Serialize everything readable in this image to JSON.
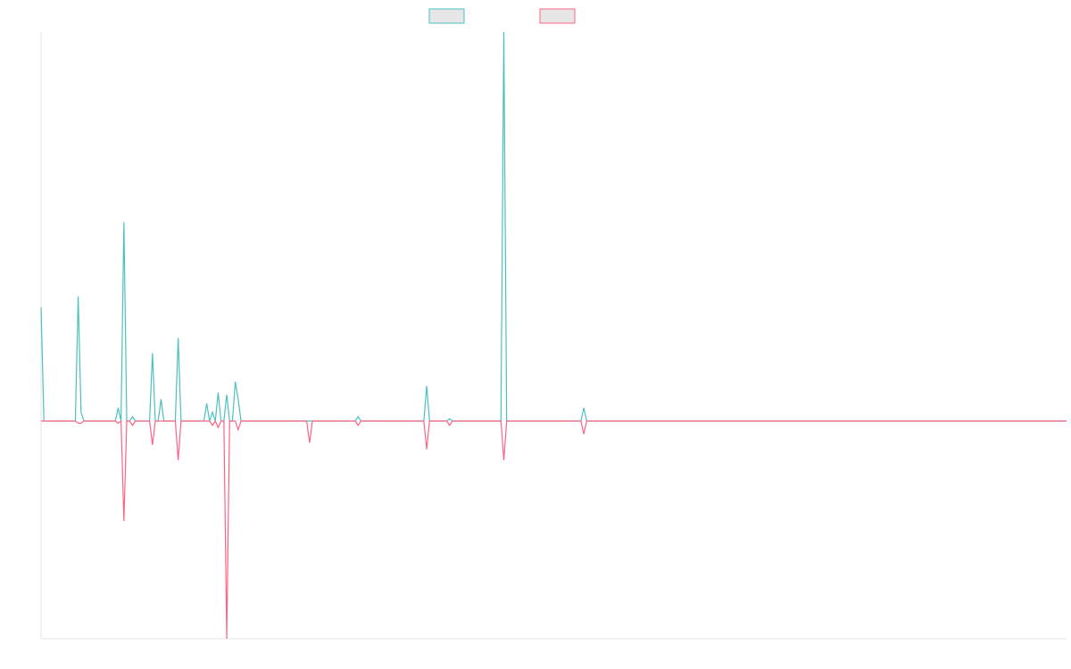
{
  "chart_data": {
    "type": "line",
    "title": "",
    "xlabel": "",
    "ylabel": "",
    "grid": false,
    "legend": {
      "placement": "top-center"
    },
    "x": [
      0,
      1,
      2,
      3,
      4,
      5,
      6,
      7,
      8,
      9,
      10,
      11,
      12,
      13,
      14,
      15,
      16,
      17,
      18,
      19,
      20,
      21,
      22,
      23,
      24,
      25,
      26,
      27,
      28,
      29,
      30,
      31,
      32,
      33,
      34,
      35,
      36,
      37,
      38,
      39,
      40,
      41,
      42,
      43,
      44,
      45,
      46,
      47,
      48,
      49,
      50,
      51,
      52,
      53,
      54,
      55,
      56,
      57,
      58,
      59,
      60,
      61,
      62,
      63,
      64,
      65,
      66,
      67,
      68,
      69,
      70,
      71,
      72,
      73,
      74,
      75,
      76,
      77,
      78,
      79,
      80,
      81,
      82,
      83,
      84,
      85,
      86,
      87,
      88,
      89,
      90,
      91,
      92,
      93,
      94,
      95,
      96,
      97,
      98,
      99,
      100,
      101,
      102,
      103,
      104,
      105,
      106,
      107,
      108,
      109,
      110,
      111,
      112,
      113,
      114,
      115,
      116,
      117,
      118,
      119,
      120,
      121,
      122,
      123,
      124,
      125,
      126,
      127,
      128,
      129,
      130,
      131,
      132,
      133,
      134,
      135,
      136,
      137,
      138,
      139,
      140,
      141,
      142,
      143,
      144,
      145,
      146,
      147,
      148,
      149,
      150,
      151,
      152,
      153,
      154,
      155,
      156,
      157,
      158,
      159,
      160,
      161,
      162,
      163,
      164,
      165,
      166,
      167,
      168,
      169,
      170,
      171,
      172,
      173,
      174,
      175,
      176,
      177,
      178,
      179,
      180,
      181,
      182,
      183,
      184,
      185,
      186,
      187,
      188,
      189,
      190,
      191,
      192,
      193,
      194,
      195,
      196,
      197,
      198,
      199,
      200,
      201,
      202,
      203,
      204,
      205,
      206,
      207,
      208,
      209,
      210,
      211,
      212,
      213,
      214,
      215,
      216,
      217,
      218,
      219,
      220,
      221,
      222,
      223,
      224,
      225,
      226,
      227,
      228,
      229,
      230,
      231,
      232,
      233,
      234,
      235,
      236,
      237,
      238,
      239,
      240,
      241,
      242,
      243,
      244,
      245,
      246,
      247,
      248,
      249,
      250,
      251,
      252,
      253,
      254,
      255,
      256,
      257,
      258,
      259,
      260,
      261,
      262,
      263,
      264,
      265,
      266,
      267,
      268,
      269,
      270,
      271,
      272,
      273,
      274,
      275,
      276,
      277,
      278,
      279,
      280,
      281,
      282,
      283,
      284,
      285,
      286,
      287,
      288,
      289,
      290,
      291,
      292,
      293,
      294,
      295,
      296,
      297,
      298,
      299,
      300,
      301,
      302,
      303,
      304,
      305,
      306,
      307,
      308,
      309,
      310,
      311,
      312,
      313,
      314,
      315,
      316,
      317,
      318,
      319,
      320,
      321,
      322,
      323,
      324,
      325,
      326,
      327,
      328,
      329,
      330,
      331,
      332,
      333,
      334,
      335,
      336,
      337,
      338,
      339,
      340,
      341,
      342,
      343,
      344,
      345,
      346,
      347,
      348,
      349,
      350,
      351,
      352,
      353,
      354,
      355,
      356,
      357,
      358,
      359
    ],
    "ylim": [
      -100,
      178
    ],
    "series": [
      {
        "color": "#4bc0c0",
        "fill": "#e6e6e6",
        "spikes": [
          {
            "x": 0,
            "y": 52
          },
          {
            "x": 13,
            "y": 57
          },
          {
            "x": 14,
            "y": 4
          },
          {
            "x": 27,
            "y": 6
          },
          {
            "x": 29,
            "y": 91
          },
          {
            "x": 32,
            "y": 2
          },
          {
            "x": 39,
            "y": 31
          },
          {
            "x": 42,
            "y": 10
          },
          {
            "x": 48,
            "y": 38
          },
          {
            "x": 58,
            "y": 8
          },
          {
            "x": 60,
            "y": 4
          },
          {
            "x": 62,
            "y": 13
          },
          {
            "x": 65,
            "y": 12
          },
          {
            "x": 68,
            "y": 18
          },
          {
            "x": 69,
            "y": 10
          },
          {
            "x": 111,
            "y": 2
          },
          {
            "x": 135,
            "y": 16
          },
          {
            "x": 143,
            "y": 1
          },
          {
            "x": 162,
            "y": 178
          },
          {
            "x": 190,
            "y": 6
          }
        ]
      },
      {
        "color": "#ff6384",
        "fill": "#e6e6e6",
        "spikes": [
          {
            "x": 13,
            "y": -1
          },
          {
            "x": 14,
            "y": -1
          },
          {
            "x": 27,
            "y": -1
          },
          {
            "x": 29,
            "y": -46
          },
          {
            "x": 32,
            "y": -2
          },
          {
            "x": 39,
            "y": -11
          },
          {
            "x": 48,
            "y": -18
          },
          {
            "x": 60,
            "y": -2
          },
          {
            "x": 62,
            "y": -3
          },
          {
            "x": 65,
            "y": -100
          },
          {
            "x": 69,
            "y": -4
          },
          {
            "x": 94,
            "y": -10
          },
          {
            "x": 111,
            "y": -2
          },
          {
            "x": 135,
            "y": -13
          },
          {
            "x": 143,
            "y": -2
          },
          {
            "x": 162,
            "y": -18
          },
          {
            "x": 190,
            "y": -6
          }
        ]
      }
    ]
  }
}
